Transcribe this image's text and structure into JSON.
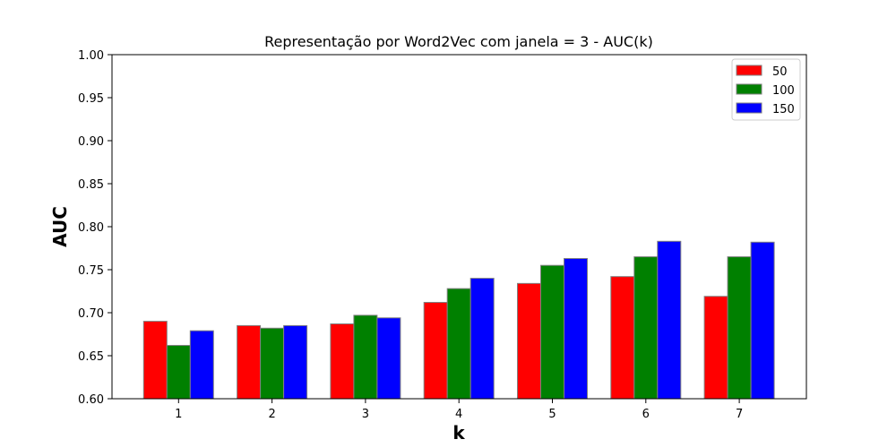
{
  "chart_data": {
    "type": "bar",
    "title": "Representação por Word2Vec com janela = 3 - AUC(k)",
    "xlabel": "k",
    "ylabel": "AUC",
    "categories": [
      "1",
      "2",
      "3",
      "4",
      "5",
      "6",
      "7"
    ],
    "ylim": [
      0.6,
      1.0
    ],
    "yticks": [
      "0.60",
      "0.65",
      "0.70",
      "0.75",
      "0.80",
      "0.85",
      "0.90",
      "0.95",
      "1.00"
    ],
    "grid": false,
    "legend_position": "top-right",
    "series": [
      {
        "name": "50",
        "color": "#ff0000",
        "values": [
          0.69,
          0.685,
          0.687,
          0.712,
          0.734,
          0.742,
          0.719
        ]
      },
      {
        "name": "100",
        "color": "#008000",
        "values": [
          0.662,
          0.682,
          0.697,
          0.728,
          0.755,
          0.765,
          0.765
        ]
      },
      {
        "name": "150",
        "color": "#0000ff",
        "values": [
          0.679,
          0.685,
          0.694,
          0.74,
          0.763,
          0.783,
          0.782
        ]
      }
    ]
  }
}
